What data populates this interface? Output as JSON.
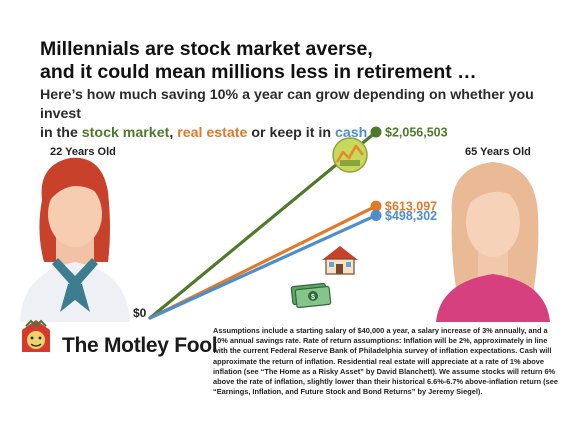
{
  "header": {
    "title_line1": "Millennials are stock market averse,",
    "title_line2": "and it could mean millions less in retirement …",
    "subtitle_part1": "Here’s how much saving 10% a year can grow depending on whether you invest",
    "subtitle_part2": "in the ",
    "subtitle_stock": "stock market",
    "subtitle_comma": ", ",
    "subtitle_realestate": "real estate",
    "subtitle_or": " or keep it in ",
    "subtitle_cash": "cash"
  },
  "labels": {
    "age_start": "22 Years Old",
    "age_end": "65 Years Old"
  },
  "colors": {
    "stock": "#4f7a2c",
    "real_estate": "#e07a2b",
    "cash": "#4d8fcc"
  },
  "chart_data": {
    "type": "line",
    "x": [
      "22 Years Old",
      "65 Years Old"
    ],
    "start_label": "$0",
    "series": [
      {
        "name": "stock market",
        "values": [
          0,
          2056503
        ],
        "end_label": "$2,056,503",
        "color": "#4f7a2c"
      },
      {
        "name": "real estate",
        "values": [
          0,
          613097
        ],
        "end_label": "$613,097",
        "color": "#e07a2b"
      },
      {
        "name": "cash",
        "values": [
          0,
          498302
        ],
        "end_label": "$498,302",
        "color": "#4d8fcc"
      }
    ]
  },
  "logo": {
    "text": "The Motley Fool"
  },
  "footnote": "Assumptions include a starting salary of $40,000 a year, a salary increase of 3% annually, and a 10% annual savings rate. Rate of return assumptions: Inflation will be 2%, approximately in line with the current Federal Reserve Bank of Philadelphia survey of inflation expectations. Cash will approximate the return of inflation. Residential real estate will appreciate at a rate of 1% above inflation (see “The Home as a Risky Asset” by David Blanchett). We assume stocks will return 6% above the rate of inflation, slightly lower than their historical 6.6%-6.7% above-inflation return (see “Earnings, Inflation, and Future Stock and Bond Returns” by Jeremy Siegel)."
}
